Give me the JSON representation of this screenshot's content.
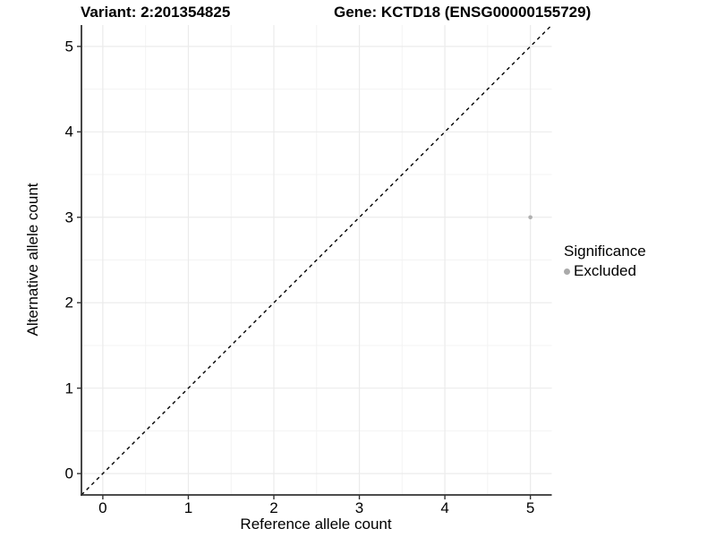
{
  "titles": {
    "variant": "Variant: 2:201354825",
    "gene": "Gene: KCTD18 (ENSG00000155729)"
  },
  "chart_data": {
    "type": "scatter",
    "title_left": "Variant: 2:201354825",
    "title_right": "Gene: KCTD18 (ENSG00000155729)",
    "xlabel": "Reference allele count",
    "ylabel": "Alternative allele count",
    "xlim": [
      -0.25,
      5.25
    ],
    "ylim": [
      -0.25,
      5.25
    ],
    "xticks": [
      0,
      1,
      2,
      3,
      4,
      5
    ],
    "yticks": [
      0,
      1,
      2,
      3,
      4,
      5
    ],
    "minor_xticks": [
      0.5,
      1.5,
      2.5,
      3.5,
      4.5
    ],
    "minor_yticks": [
      0.5,
      1.5,
      2.5,
      3.5,
      4.5
    ],
    "grid": true,
    "points": [
      {
        "x": 5,
        "y": 3,
        "series": "Excluded"
      }
    ],
    "identity_line": {
      "type": "dashed",
      "x1": -0.25,
      "y1": -0.25,
      "x2": 5.25,
      "y2": 5.25
    },
    "legend": {
      "title": "Significance",
      "position": "right",
      "entries": [
        {
          "label": "Excluded",
          "color": "#aaaaaa"
        }
      ]
    },
    "colors": {
      "point": "#b0b0b0",
      "grid_major": "#ebebeb",
      "grid_minor": "#f3f3f3",
      "axis_line": "#333333",
      "identity_line": "#000000",
      "text": "#000000"
    }
  }
}
